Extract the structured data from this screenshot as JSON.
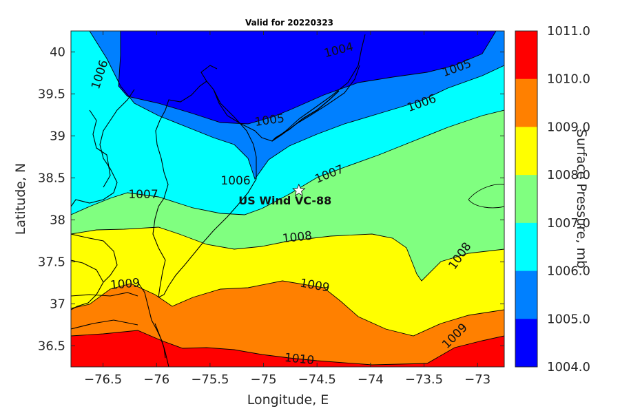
{
  "map": {
    "title": "Valid for 20220323",
    "xlabel": "Longitude, E",
    "ylabel": "Latitude, N",
    "colorbar_label": "Surface Pressure, mb",
    "x_ticks": [
      "−76.5",
      "−76",
      "−75.5",
      "−75",
      "−74.5",
      "−74",
      "−73.5",
      "−73"
    ],
    "y_ticks": [
      "40",
      "39.5",
      "39",
      "38.5",
      "38",
      "37.5",
      "37",
      "36.5"
    ],
    "xlim": [
      -76.8,
      -72.75
    ],
    "ylim": [
      36.25,
      40.25
    ],
    "colorbar_ticks": [
      "1011.0",
      "1010.0",
      "1009.0",
      "1008.0",
      "1007.0",
      "1006.0",
      "1005.0",
      "1004.0"
    ],
    "colorbar_colors": [
      "#ff0000",
      "#ff8000",
      "#ffff00",
      "#80ff80",
      "#00ffff",
      "#0080ff",
      "#0000ff"
    ],
    "contour_labels": [
      "1004",
      "1005",
      "1006",
      "1005",
      "1006",
      "1006",
      "1007",
      "1007",
      "1008",
      "1008",
      "1009",
      "1009",
      "1009",
      "1010"
    ],
    "site": {
      "label": "US Wind VC-88",
      "lon": -74.67,
      "lat": 38.35,
      "marker": "star-icon"
    }
  }
}
